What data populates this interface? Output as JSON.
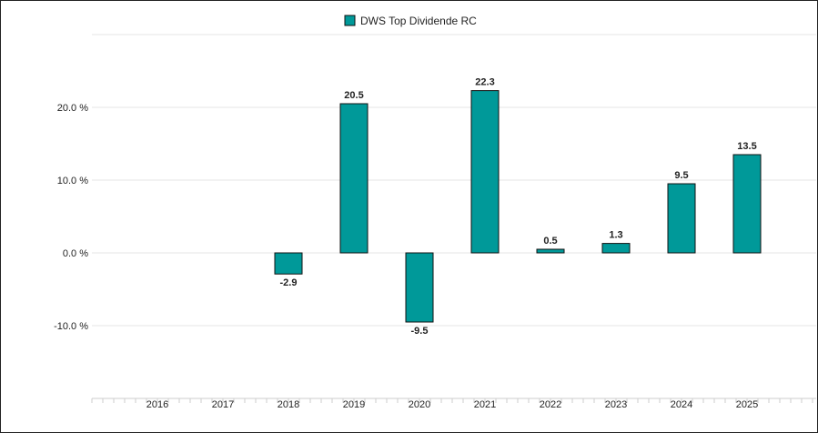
{
  "chart_data": {
    "type": "bar",
    "categories": [
      "2016",
      "2017",
      "2018",
      "2019",
      "2020",
      "2021",
      "2022",
      "2023",
      "2024",
      "2025"
    ],
    "series": [
      {
        "name": "DWS Top Dividende RC",
        "values": [
          null,
          null,
          -2.9,
          20.5,
          -9.5,
          22.3,
          0.5,
          1.3,
          9.5,
          13.5
        ],
        "labels": [
          "",
          "",
          "-2.9",
          "20.5",
          "-9.5",
          "22.3",
          "0.5",
          "1.3",
          "9.5",
          "13.5"
        ],
        "color": "#009999"
      }
    ],
    "yticks": [
      20,
      10,
      0,
      -10
    ],
    "ytick_labels": [
      "20.0 %",
      "10.0 %",
      "0.0 %",
      "-10.0 %"
    ],
    "ylim": [
      -20,
      30
    ],
    "grid": true,
    "legend_position": "top-center",
    "title": "",
    "xlabel": "",
    "ylabel": ""
  }
}
